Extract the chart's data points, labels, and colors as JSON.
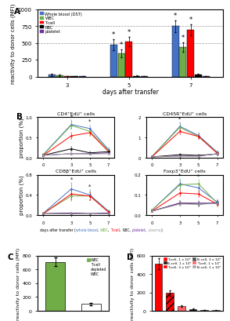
{
  "panel_A": {
    "groups": [
      3,
      5,
      7
    ],
    "bars": {
      "Whole blood (DST)": {
        "color": "#4472c4",
        "values": [
          30,
          475,
          750
        ],
        "errors": [
          15,
          80,
          90
        ]
      },
      "WBC": {
        "color": "#70ad47",
        "values": [
          20,
          350,
          440
        ],
        "errors": [
          10,
          60,
          70
        ]
      },
      "T-cell": {
        "color": "#ff0000",
        "values": [
          5,
          525,
          700
        ],
        "errors": [
          5,
          70,
          80
        ]
      },
      "RBC": {
        "color": "#000000",
        "values": [
          5,
          15,
          30
        ],
        "errors": [
          2,
          5,
          10
        ]
      },
      "platelet": {
        "color": "#7030a0",
        "values": [
          5,
          5,
          5
        ],
        "errors": [
          2,
          2,
          2
        ]
      }
    },
    "ylabel": "reactivity to donor cells (MFI)",
    "xlabel": "days after transfer",
    "ylim": [
      0,
      1000
    ],
    "yticks": [
      0,
      250,
      500,
      750,
      1000
    ],
    "hlines": [
      500,
      750
    ],
    "stars_groups": [
      1,
      2
    ]
  },
  "panel_B": {
    "subplots": [
      {
        "title": "CD4⁺EdU⁺ cells",
        "ylim": [
          0,
          1.0
        ],
        "yticks": [
          0,
          0.5,
          1.0
        ],
        "lines": {
          "whole_blood": {
            "color": "#4472c4",
            "values": [
              0.08,
              0.82,
              0.72,
              0.2
            ],
            "errors": [
              0.02,
              0.1,
              0.08,
              0.05
            ]
          },
          "WBC": {
            "color": "#70ad47",
            "values": [
              0.07,
              0.8,
              0.65,
              0.18
            ],
            "errors": [
              0.02,
              0.08,
              0.07,
              0.04
            ]
          },
          "T-cell": {
            "color": "#ff0000",
            "values": [
              0.06,
              0.54,
              0.62,
              0.15
            ],
            "errors": [
              0.02,
              0.08,
              0.07,
              0.04
            ]
          },
          "RBC": {
            "color": "#000000",
            "values": [
              0.06,
              0.22,
              0.12,
              0.15
            ],
            "errors": [
              0.02,
              0.05,
              0.03,
              0.04
            ]
          },
          "platelet": {
            "color": "#7030a0",
            "values": [
              0.06,
              0.1,
              0.1,
              0.12
            ],
            "errors": [
              0.02,
              0.03,
              0.02,
              0.03
            ]
          },
          "plasma": {
            "color": "#a0a0a0",
            "values": [
              0.06,
              0.1,
              0.09,
              0.1
            ],
            "errors": [
              0.02,
              0.02,
              0.02,
              0.02
            ]
          }
        },
        "stars_at": [
          3,
          5
        ],
        "xvals": [
          0,
          3,
          5,
          7
        ]
      },
      {
        "title": "CD45R⁺EdU⁺ cells",
        "ylim": [
          0,
          2.0
        ],
        "yticks": [
          0,
          1.0,
          2.0
        ],
        "lines": {
          "whole_blood": {
            "color": "#4472c4",
            "values": [
              0.05,
              1.55,
              1.1,
              0.28
            ],
            "errors": [
              0.02,
              0.2,
              0.15,
              0.06
            ]
          },
          "WBC": {
            "color": "#70ad47",
            "values": [
              0.05,
              1.5,
              1.05,
              0.25
            ],
            "errors": [
              0.02,
              0.18,
              0.12,
              0.06
            ]
          },
          "T-cell": {
            "color": "#ff0000",
            "values": [
              0.04,
              1.3,
              1.05,
              0.22
            ],
            "errors": [
              0.02,
              0.15,
              0.12,
              0.05
            ]
          },
          "RBC": {
            "color": "#000000",
            "values": [
              0.04,
              0.15,
              0.12,
              0.18
            ],
            "errors": [
              0.01,
              0.04,
              0.03,
              0.05
            ]
          },
          "platelet": {
            "color": "#7030a0",
            "values": [
              0.04,
              0.08,
              0.08,
              0.2
            ],
            "errors": [
              0.01,
              0.02,
              0.02,
              0.05
            ]
          },
          "plasma": {
            "color": "#a0a0a0",
            "values": [
              0.04,
              0.08,
              0.07,
              0.2
            ],
            "errors": [
              0.01,
              0.02,
              0.02,
              0.05
            ]
          }
        },
        "stars_at": [
          3
        ],
        "xvals": [
          0,
          3,
          5,
          7
        ]
      },
      {
        "title": "CD8β⁺EdU⁺ cells",
        "ylim": [
          0,
          0.8
        ],
        "yticks": [
          0,
          0.4,
          0.8
        ],
        "lines": {
          "whole_blood": {
            "color": "#4472c4",
            "values": [
              0.04,
              0.52,
              0.4,
              0.08
            ],
            "errors": [
              0.01,
              0.12,
              0.1,
              0.02
            ]
          },
          "WBC": {
            "color": "#70ad47",
            "values": [
              0.04,
              0.38,
              0.38,
              0.07
            ],
            "errors": [
              0.01,
              0.1,
              0.08,
              0.02
            ]
          },
          "T-cell": {
            "color": "#ff0000",
            "values": [
              0.03,
              0.42,
              0.38,
              0.06
            ],
            "errors": [
              0.01,
              0.1,
              0.08,
              0.02
            ]
          },
          "RBC": {
            "color": "#000000",
            "values": [
              0.03,
              0.04,
              0.03,
              0.04
            ],
            "errors": [
              0.01,
              0.01,
              0.01,
              0.01
            ]
          },
          "platelet": {
            "color": "#7030a0",
            "values": [
              0.03,
              0.04,
              0.03,
              0.04
            ],
            "errors": [
              0.01,
              0.01,
              0.01,
              0.01
            ]
          },
          "plasma": {
            "color": "#a0a0a0",
            "values": [
              0.03,
              0.03,
              0.03,
              0.03
            ],
            "errors": [
              0.01,
              0.01,
              0.01,
              0.01
            ]
          }
        },
        "stars_at": [
          3,
          5
        ],
        "xvals": [
          0,
          3,
          5,
          7
        ]
      },
      {
        "title": "Foxp3⁺EdU⁺ cells",
        "ylim": [
          0,
          0.2
        ],
        "yticks": [
          0,
          0.1,
          0.2
        ],
        "lines": {
          "whole_blood": {
            "color": "#4472c4",
            "values": [
              0.025,
              0.155,
              0.135,
              0.065
            ],
            "errors": [
              0.005,
              0.025,
              0.02,
              0.015
            ]
          },
          "WBC": {
            "color": "#70ad47",
            "values": [
              0.025,
              0.15,
              0.155,
              0.06
            ],
            "errors": [
              0.005,
              0.02,
              0.02,
              0.012
            ]
          },
          "T-cell": {
            "color": "#ff0000",
            "values": [
              0.02,
              0.11,
              0.105,
              0.055
            ],
            "errors": [
              0.005,
              0.015,
              0.015,
              0.012
            ]
          },
          "RBC": {
            "color": "#000000",
            "values": [
              0.02,
              0.06,
              0.055,
              0.06
            ],
            "errors": [
              0.005,
              0.01,
              0.01,
              0.01
            ]
          },
          "platelet": {
            "color": "#7030a0",
            "values": [
              0.02,
              0.06,
              0.06,
              0.06
            ],
            "errors": [
              0.005,
              0.01,
              0.01,
              0.01
            ]
          },
          "plasma": {
            "color": "#a0a0a0",
            "values": [
              0.02,
              0.055,
              0.055,
              0.058
            ],
            "errors": [
              0.005,
              0.01,
              0.01,
              0.01
            ]
          }
        },
        "stars_at": [
          3,
          5
        ],
        "xvals": [
          0,
          3,
          5,
          7
        ]
      }
    ],
    "ylabel": "proportion (%)",
    "legend_parts": [
      {
        "text": "days after transfer (",
        "color": "#000000"
      },
      {
        "text": "whole blood",
        "color": "#4472c4"
      },
      {
        "text": ", ",
        "color": "#000000"
      },
      {
        "text": "WBC",
        "color": "#70ad47"
      },
      {
        "text": ", ",
        "color": "#000000"
      },
      {
        "text": "T-cell",
        "color": "#ff0000"
      },
      {
        "text": ", ",
        "color": "#000000"
      },
      {
        "text": "RBC",
        "color": "#000000"
      },
      {
        "text": ", ",
        "color": "#000000"
      },
      {
        "text": "platelet",
        "color": "#7030a0"
      },
      {
        "text": ", ",
        "color": "#000000"
      },
      {
        "text": "plasma",
        "color": "#a0a0a0"
      },
      {
        "text": ")",
        "color": "#000000"
      }
    ]
  },
  "panel_C": {
    "bars": [
      {
        "label": "WBC",
        "color": "#70ad47",
        "value": 710,
        "error": 60
      },
      {
        "label": "T-cell\ndepleted\nWBC",
        "color": "#ffffff",
        "value": 100,
        "error": 15
      }
    ],
    "legend": [
      {
        "label": "WBC",
        "color": "#70ad47"
      },
      {
        "label": "T-cell\ndepleted\nWBC",
        "color": "#ffffff"
      }
    ],
    "ylabel": "reactivity to donor cells (MFI)",
    "ylim": [
      0,
      800
    ],
    "yticks": [
      0,
      200,
      400,
      600,
      800
    ]
  },
  "panel_D": {
    "bar_groups": [
      {
        "x": 0,
        "color": "#ff0000",
        "hatch": "",
        "value": 510,
        "error": 60
      },
      {
        "x": 1,
        "color": "#ff0000",
        "hatch": "////",
        "value": 195,
        "error": 30
      },
      {
        "x": 2,
        "color": "#ff6666",
        "hatch": "",
        "value": 50,
        "error": 10
      },
      {
        "x": 3,
        "color": "#1a1a1a",
        "hatch": "",
        "value": 20,
        "error": 5
      },
      {
        "x": 4,
        "color": "#555555",
        "hatch": "////",
        "value": 8,
        "error": 3
      },
      {
        "x": 5,
        "color": "#aaaaaa",
        "hatch": "",
        "value": 5,
        "error": 2
      }
    ],
    "legend": [
      {
        "label": "T-cell, 1 x 10⁵",
        "color": "#ff0000",
        "hatch": ""
      },
      {
        "label": "B-cell, 1 x 10⁵",
        "color": "#1a1a1a",
        "hatch": ""
      },
      {
        "label": "T-cell, 3 x 10⁵",
        "color": "#ff0000",
        "hatch": "////"
      },
      {
        "label": "B-cell, 3 x 10⁵",
        "color": "#555555",
        "hatch": "////"
      },
      {
        "label": "T-cell, 1 x 10⁴",
        "color": "#ff6666",
        "hatch": ""
      },
      {
        "label": "B-cell, 1 x 10⁴",
        "color": "#aaaaaa",
        "hatch": ""
      }
    ],
    "ylabel": "reactivity to donor cells (MFI)",
    "ylim": [
      0,
      600
    ],
    "yticks": [
      0,
      200,
      400,
      600
    ]
  },
  "bg_color": "#ffffff",
  "font_size": 5.5,
  "tick_font_size": 5.0
}
